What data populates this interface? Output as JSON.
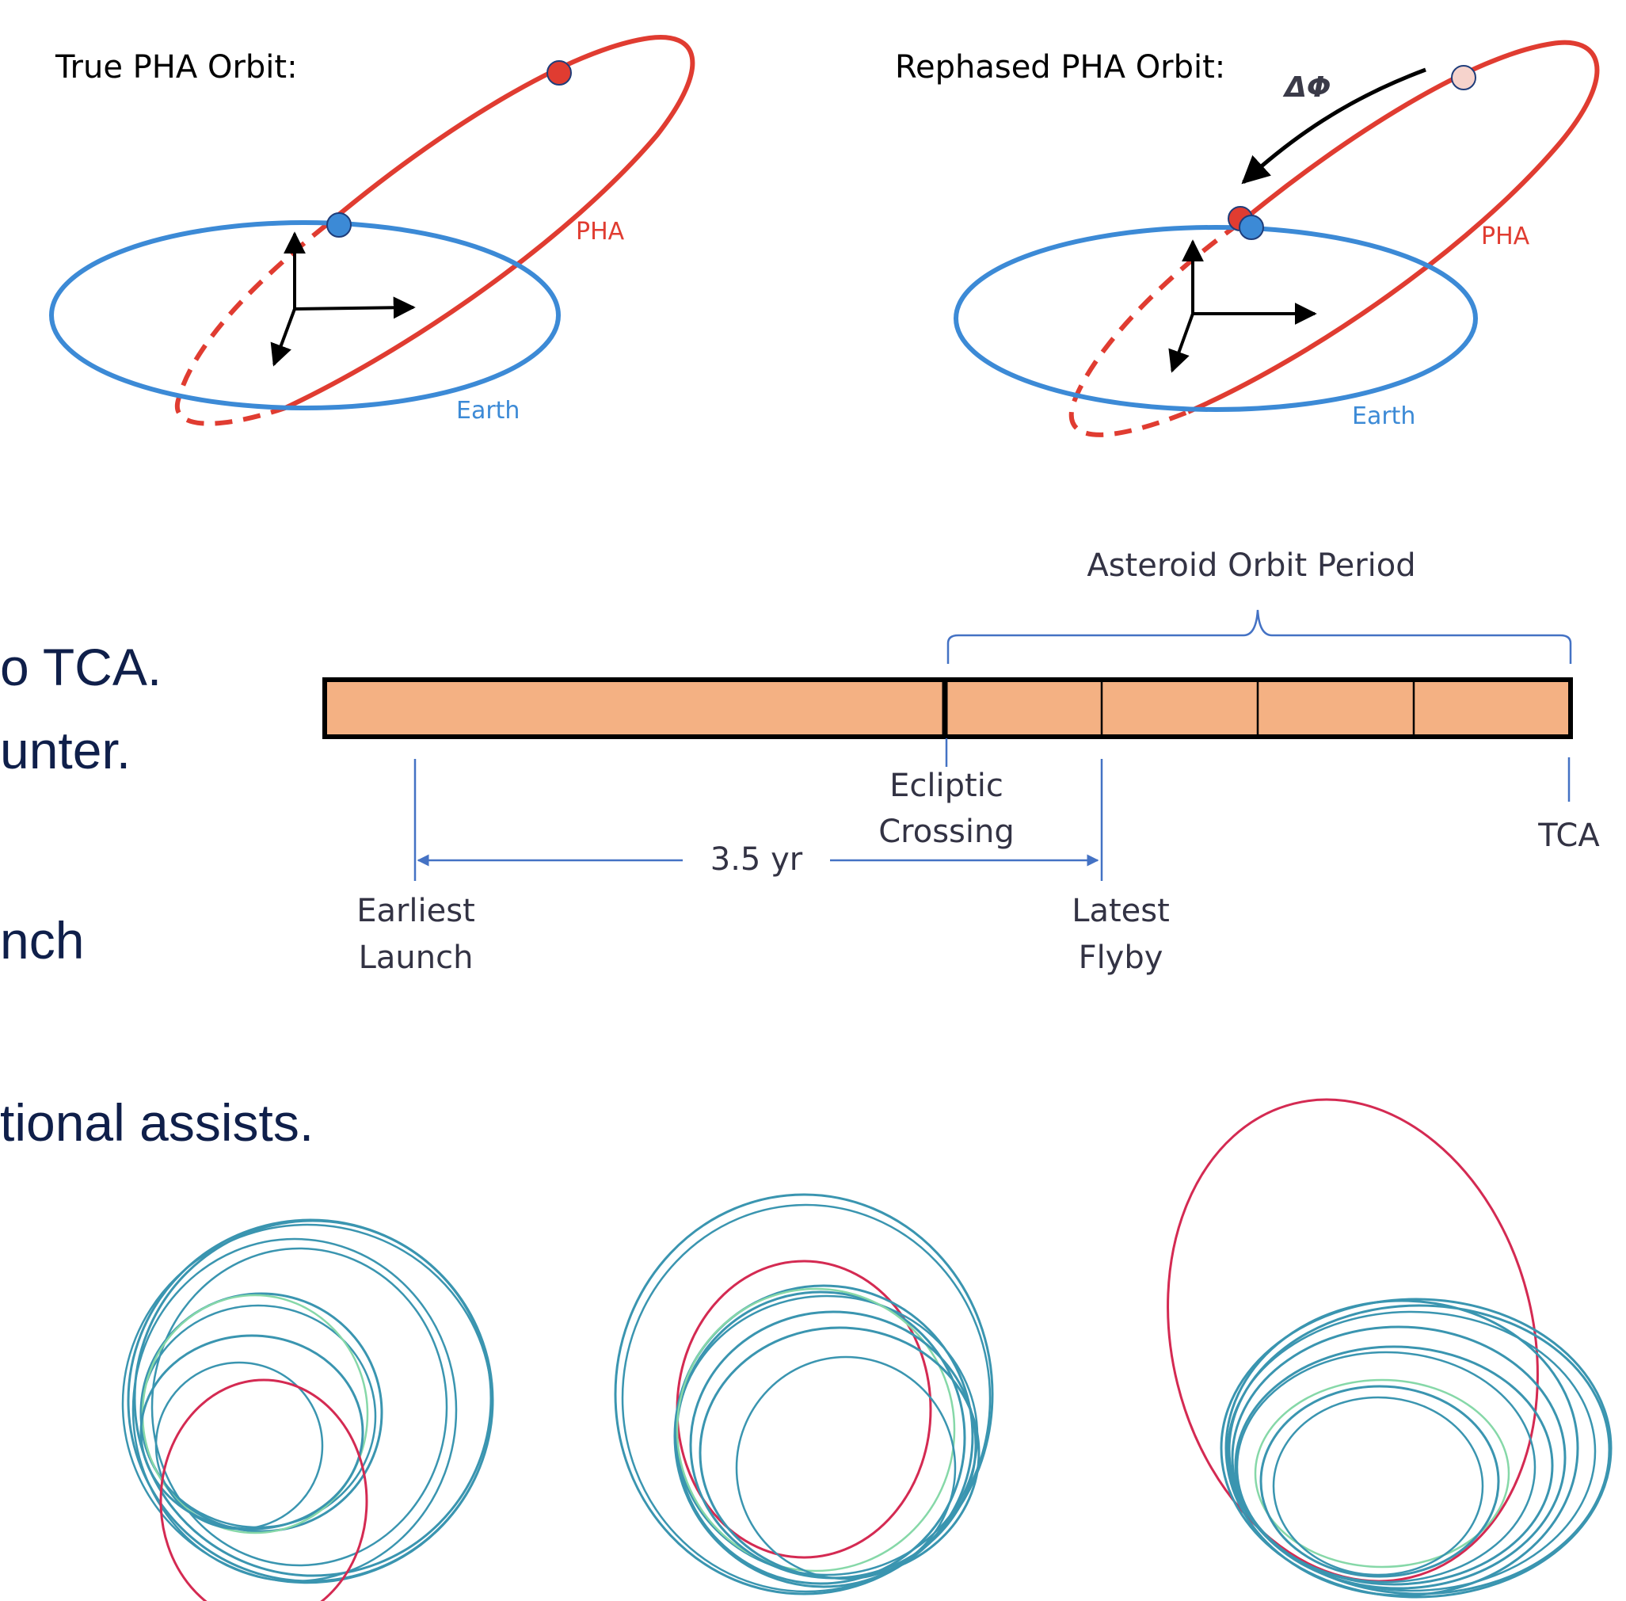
{
  "colors": {
    "earth": "#3c8ad6",
    "pha": "#e03c31",
    "pha_light": "#f6d3cc",
    "bar_fill": "#f4b183",
    "timeline_line": "#4472c4",
    "label_text": "#333344",
    "slide_text": "#0f1f4a",
    "traj_teal": "#3a95b0",
    "traj_red": "#d42a52",
    "traj_green": "#86d8a8"
  },
  "orbit_diagrams": {
    "true_title": "True PHA Orbit:",
    "rephased_title": "Rephased PHA Orbit:",
    "pha_label": "PHA",
    "earth_label": "Earth",
    "delta_phi": "ΔΦ"
  },
  "timeline": {
    "period_label": "Asteroid Orbit Period",
    "ecliptic_line1": "Ecliptic",
    "ecliptic_line2": "Crossing",
    "tca": "TCA",
    "duration": "3.5 yr",
    "earliest_line1": "Earliest",
    "earliest_line2": "Launch",
    "latest_line1": "Latest",
    "latest_line2": "Flyby"
  },
  "slide_fragments": [
    "o TCA.",
    "unter.",
    "nch",
    "tional assists."
  ]
}
